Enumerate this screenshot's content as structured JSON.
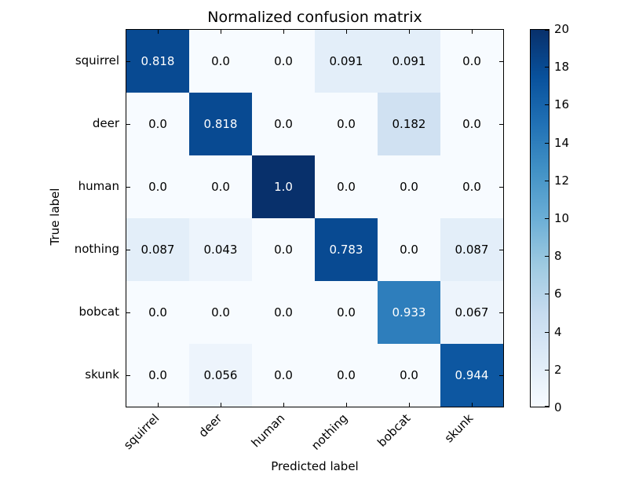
{
  "figure": {
    "title": "Normalized confusion matrix",
    "xlabel": "Predicted label",
    "ylabel": "True label"
  },
  "chart_data": {
    "type": "heatmap",
    "title": "Normalized confusion matrix",
    "xlabel": "Predicted label",
    "ylabel": "True label",
    "x_tick_labels": [
      "squirrel",
      "deer",
      "human",
      "nothing",
      "bobcat",
      "skunk"
    ],
    "y_tick_labels": [
      "squirrel",
      "deer",
      "human",
      "nothing",
      "bobcat",
      "skunk"
    ],
    "values": [
      [
        0.818,
        0.0,
        0.0,
        0.091,
        0.091,
        0.0
      ],
      [
        0.0,
        0.818,
        0.0,
        0.0,
        0.182,
        0.0
      ],
      [
        0.0,
        0.0,
        1.0,
        0.0,
        0.0,
        0.0
      ],
      [
        0.087,
        0.043,
        0.0,
        0.783,
        0.0,
        0.087
      ],
      [
        0.0,
        0.0,
        0.0,
        0.0,
        0.933,
        0.067
      ],
      [
        0.0,
        0.056,
        0.0,
        0.0,
        0.0,
        0.944
      ]
    ],
    "value_labels": [
      [
        "0.818",
        "0.0",
        "0.0",
        "0.091",
        "0.091",
        "0.0"
      ],
      [
        "0.0",
        "0.818",
        "0.0",
        "0.0",
        "0.182",
        "0.0"
      ],
      [
        "0.0",
        "0.0",
        "1.0",
        "0.0",
        "0.0",
        "0.0"
      ],
      [
        "0.087",
        "0.043",
        "0.0",
        "0.783",
        "0.0",
        "0.087"
      ],
      [
        "0.0",
        "0.0",
        "0.0",
        "0.0",
        "0.933",
        "0.067"
      ],
      [
        "0.0",
        "0.056",
        "0.0",
        "0.0",
        "0.0",
        "0.944"
      ]
    ],
    "cell_colors": [
      [
        "#084a92",
        "#f7fbff",
        "#f7fbff",
        "#e3eef9",
        "#e3eef9",
        "#f7fbff"
      ],
      [
        "#f7fbff",
        "#084a92",
        "#f7fbff",
        "#f7fbff",
        "#d0e1f2",
        "#f7fbff"
      ],
      [
        "#f7fbff",
        "#f7fbff",
        "#08306b",
        "#f7fbff",
        "#f7fbff",
        "#f7fbff"
      ],
      [
        "#e3eef9",
        "#edf4fc",
        "#f7fbff",
        "#084a92",
        "#f7fbff",
        "#e3eef9"
      ],
      [
        "#f7fbff",
        "#f7fbff",
        "#f7fbff",
        "#f7fbff",
        "#2e7ebc",
        "#edf4fc"
      ],
      [
        "#f7fbff",
        "#edf4fc",
        "#f7fbff",
        "#f7fbff",
        "#f7fbff",
        "#0d57a1"
      ]
    ],
    "colormap": "Blues",
    "grid": false,
    "legend": "none",
    "colorbar": {
      "min": 0,
      "max": 20,
      "ticks": [
        0,
        2,
        4,
        6,
        8,
        10,
        12,
        14,
        16,
        18,
        20
      ],
      "position": "right"
    }
  },
  "colors": {
    "background": "#ffffff",
    "axes_edge": "#000000",
    "text_dark": "#000000",
    "text_light": "#ffffff",
    "cmap_low": "#f7fbff",
    "cmap_high": "#08306b"
  }
}
